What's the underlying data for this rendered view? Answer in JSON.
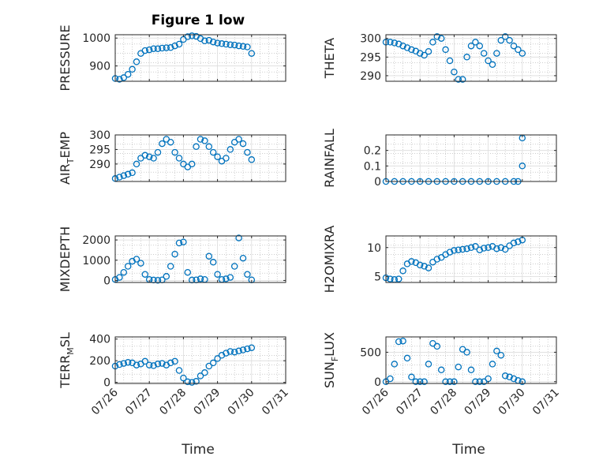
{
  "title": "Figure 1 low",
  "xlabel": "Time",
  "x_ticks": [
    "07/26",
    "07/27",
    "07/28",
    "07/29",
    "07/30",
    "07/31"
  ],
  "colors": {
    "marker": "#0072BD",
    "axis": "#262626",
    "grid": "#b0b0b0"
  },
  "chart_data": [
    {
      "type": "scatter",
      "panel": "top-left",
      "ylabel": "PRESSURE",
      "yticks": [
        "900",
        "1000"
      ],
      "ylim": [
        845,
        1012
      ],
      "x": [
        "07/26 00:00",
        "07/26 03:00",
        "07/26 06:00",
        "07/26 09:00",
        "07/26 12:00",
        "07/26 15:00",
        "07/26 18:00",
        "07/26 21:00",
        "07/27 00:00",
        "07/27 03:00",
        "07/27 06:00",
        "07/27 09:00",
        "07/27 12:00",
        "07/27 15:00",
        "07/27 18:00",
        "07/27 21:00",
        "07/28 00:00",
        "07/28 03:00",
        "07/28 06:00",
        "07/28 09:00",
        "07/28 12:00",
        "07/28 15:00",
        "07/28 18:00",
        "07/28 21:00",
        "07/29 00:00",
        "07/29 03:00",
        "07/29 06:00",
        "07/29 09:00",
        "07/29 12:00",
        "07/29 15:00",
        "07/29 18:00",
        "07/29 21:00",
        "07/30 00:00"
      ],
      "y": [
        855,
        852,
        858,
        870,
        888,
        915,
        945,
        955,
        958,
        962,
        962,
        964,
        965,
        966,
        972,
        978,
        995,
        1005,
        1008,
        1006,
        998,
        990,
        992,
        986,
        982,
        980,
        978,
        976,
        975,
        972,
        970,
        968,
        945
      ]
    },
    {
      "type": "scatter",
      "panel": "top-right",
      "ylabel": "THETA",
      "yticks": [
        "290",
        "295",
        "300"
      ],
      "ylim": [
        288.5,
        301
      ],
      "x": [
        "07/26 00:00",
        "07/26 03:00",
        "07/26 06:00",
        "07/26 09:00",
        "07/26 12:00",
        "07/26 15:00",
        "07/26 18:00",
        "07/26 21:00",
        "07/27 00:00",
        "07/27 03:00",
        "07/27 06:00",
        "07/27 09:00",
        "07/27 12:00",
        "07/27 15:00",
        "07/27 18:00",
        "07/27 21:00",
        "07/28 00:00",
        "07/28 03:00",
        "07/28 06:00",
        "07/28 09:00",
        "07/28 12:00",
        "07/28 15:00",
        "07/28 18:00",
        "07/28 21:00",
        "07/29 00:00",
        "07/29 03:00",
        "07/29 06:00",
        "07/29 09:00",
        "07/29 12:00",
        "07/29 15:00",
        "07/29 18:00",
        "07/29 21:00",
        "07/30 00:00"
      ],
      "y": [
        299,
        299,
        298.8,
        298.5,
        298,
        297.5,
        297,
        296.6,
        296,
        295.5,
        296.5,
        299,
        300.5,
        300,
        297,
        294,
        291,
        289,
        289,
        295,
        298,
        299,
        298,
        296,
        294,
        293,
        296,
        299.5,
        300.5,
        299.5,
        298,
        297,
        296
      ]
    },
    {
      "type": "scatter",
      "panel": "second-left",
      "ylabel": "AIR_TEMP",
      "yticks": [
        "290",
        "295",
        "300"
      ],
      "ylim": [
        284,
        300
      ],
      "x": [
        "07/26 00:00",
        "07/26 03:00",
        "07/26 06:00",
        "07/26 09:00",
        "07/26 12:00",
        "07/26 15:00",
        "07/26 18:00",
        "07/26 21:00",
        "07/27 00:00",
        "07/27 03:00",
        "07/27 06:00",
        "07/27 09:00",
        "07/27 12:00",
        "07/27 15:00",
        "07/27 18:00",
        "07/27 21:00",
        "07/28 00:00",
        "07/28 03:00",
        "07/28 06:00",
        "07/28 09:00",
        "07/28 12:00",
        "07/28 15:00",
        "07/28 18:00",
        "07/28 21:00",
        "07/29 00:00",
        "07/29 03:00",
        "07/29 06:00",
        "07/29 09:00",
        "07/29 12:00",
        "07/29 15:00",
        "07/29 18:00",
        "07/29 21:00",
        "07/30 00:00"
      ],
      "y": [
        285,
        285.5,
        286,
        286.5,
        287,
        290,
        292,
        293,
        292.5,
        292,
        294,
        297,
        298.5,
        297.5,
        294,
        292,
        290,
        289,
        290,
        296,
        298.5,
        298,
        296,
        294,
        292.5,
        291,
        292,
        295,
        297.5,
        298.5,
        297,
        294,
        291.5
      ]
    },
    {
      "type": "scatter",
      "panel": "second-right",
      "ylabel": "RAINFALL",
      "yticks": [
        "0",
        "0.1",
        "0.2"
      ],
      "ylim": [
        0,
        0.3
      ],
      "x": [
        "07/26 00:00",
        "07/26 06:00",
        "07/26 12:00",
        "07/26 18:00",
        "07/27 00:00",
        "07/27 06:00",
        "07/27 12:00",
        "07/27 18:00",
        "07/28 00:00",
        "07/28 06:00",
        "07/28 12:00",
        "07/28 18:00",
        "07/29 00:00",
        "07/29 06:00",
        "07/29 12:00",
        "07/29 18:00",
        "07/29 21:00",
        "07/30 00:00",
        "07/30 00:00"
      ],
      "y": [
        0,
        0,
        0,
        0,
        0,
        0,
        0,
        0,
        0,
        0,
        0,
        0,
        0,
        0,
        0,
        0,
        0,
        0.1,
        0.28
      ]
    },
    {
      "type": "scatter",
      "panel": "third-left",
      "ylabel": "MIXDEPTH",
      "yticks": [
        "0",
        "1000",
        "2000"
      ],
      "ylim": [
        -100,
        2200
      ],
      "x": [
        "07/26 00:00",
        "07/26 03:00",
        "07/26 06:00",
        "07/26 09:00",
        "07/26 12:00",
        "07/26 15:00",
        "07/26 18:00",
        "07/26 21:00",
        "07/27 00:00",
        "07/27 03:00",
        "07/27 06:00",
        "07/27 09:00",
        "07/27 12:00",
        "07/27 15:00",
        "07/27 18:00",
        "07/27 21:00",
        "07/28 00:00",
        "07/28 03:00",
        "07/28 06:00",
        "07/28 09:00",
        "07/28 12:00",
        "07/28 15:00",
        "07/28 18:00",
        "07/28 21:00",
        "07/29 00:00",
        "07/29 03:00",
        "07/29 06:00",
        "07/29 09:00",
        "07/29 12:00",
        "07/29 15:00",
        "07/29 18:00",
        "07/29 21:00",
        "07/30 00:00"
      ],
      "y": [
        50,
        150,
        400,
        700,
        950,
        1050,
        850,
        300,
        50,
        20,
        10,
        30,
        200,
        700,
        1300,
        1850,
        1900,
        400,
        20,
        30,
        80,
        50,
        1200,
        900,
        300,
        50,
        80,
        150,
        700,
        2100,
        1100,
        300,
        30
      ]
    },
    {
      "type": "scatter",
      "panel": "third-right",
      "ylabel": "H2OMIXRA",
      "yticks": [
        "5",
        "10"
      ],
      "ylim": [
        4,
        12
      ],
      "x": [
        "07/26 00:00",
        "07/26 03:00",
        "07/26 06:00",
        "07/26 09:00",
        "07/26 12:00",
        "07/26 15:00",
        "07/26 18:00",
        "07/26 21:00",
        "07/27 00:00",
        "07/27 03:00",
        "07/27 06:00",
        "07/27 09:00",
        "07/27 12:00",
        "07/27 15:00",
        "07/27 18:00",
        "07/27 21:00",
        "07/28 00:00",
        "07/28 03:00",
        "07/28 06:00",
        "07/28 09:00",
        "07/28 12:00",
        "07/28 15:00",
        "07/28 18:00",
        "07/28 21:00",
        "07/29 00:00",
        "07/29 03:00",
        "07/29 06:00",
        "07/29 09:00",
        "07/29 12:00",
        "07/29 15:00",
        "07/29 18:00",
        "07/29 21:00",
        "07/30 00:00"
      ],
      "y": [
        4.8,
        4.6,
        4.5,
        4.6,
        6,
        7.2,
        7.6,
        7.4,
        7,
        6.8,
        6.5,
        7.5,
        8,
        8.3,
        8.8,
        9.2,
        9.5,
        9.6,
        9.7,
        9.8,
        10,
        10.2,
        9.6,
        9.9,
        10,
        10.2,
        9.8,
        10,
        9.7,
        10.3,
        10.8,
        11,
        11.3
      ]
    },
    {
      "type": "scatter",
      "panel": "bottom-left",
      "ylabel": "TERR_MSL",
      "yticks": [
        "0",
        "200",
        "400"
      ],
      "ylim": [
        -10,
        420
      ],
      "x": [
        "07/26 00:00",
        "07/26 03:00",
        "07/26 06:00",
        "07/26 09:00",
        "07/26 12:00",
        "07/26 15:00",
        "07/26 18:00",
        "07/26 21:00",
        "07/27 00:00",
        "07/27 03:00",
        "07/27 06:00",
        "07/27 09:00",
        "07/27 12:00",
        "07/27 15:00",
        "07/27 18:00",
        "07/27 21:00",
        "07/28 00:00",
        "07/28 03:00",
        "07/28 06:00",
        "07/28 09:00",
        "07/28 12:00",
        "07/28 15:00",
        "07/28 18:00",
        "07/28 21:00",
        "07/29 00:00",
        "07/29 03:00",
        "07/29 06:00",
        "07/29 09:00",
        "07/29 12:00",
        "07/29 15:00",
        "07/29 18:00",
        "07/29 21:00",
        "07/30 00:00"
      ],
      "y": [
        150,
        165,
        175,
        185,
        180,
        160,
        170,
        195,
        160,
        155,
        170,
        175,
        160,
        180,
        195,
        110,
        40,
        5,
        0,
        10,
        60,
        90,
        150,
        180,
        220,
        250,
        270,
        285,
        280,
        290,
        300,
        310,
        320
      ]
    },
    {
      "type": "scatter",
      "panel": "bottom-right",
      "ylabel": "SUN_FLUX",
      "yticks": [
        "0",
        "500"
      ],
      "ylim": [
        -30,
        760
      ],
      "x": [
        "07/26 00:00",
        "07/26 03:00",
        "07/26 06:00",
        "07/26 09:00",
        "07/26 12:00",
        "07/26 15:00",
        "07/26 18:00",
        "07/26 21:00",
        "07/27 00:00",
        "07/27 03:00",
        "07/27 06:00",
        "07/27 09:00",
        "07/27 12:00",
        "07/27 15:00",
        "07/27 18:00",
        "07/27 21:00",
        "07/28 00:00",
        "07/28 03:00",
        "07/28 06:00",
        "07/28 09:00",
        "07/28 12:00",
        "07/28 15:00",
        "07/28 18:00",
        "07/28 21:00",
        "07/29 00:00",
        "07/29 03:00",
        "07/29 06:00",
        "07/29 09:00",
        "07/29 12:00",
        "07/29 15:00",
        "07/29 18:00",
        "07/29 21:00",
        "07/30 00:00"
      ],
      "y": [
        0,
        50,
        300,
        680,
        690,
        400,
        80,
        0,
        0,
        0,
        300,
        650,
        600,
        200,
        0,
        0,
        0,
        250,
        550,
        500,
        200,
        0,
        0,
        0,
        50,
        300,
        520,
        450,
        100,
        80,
        50,
        20,
        0
      ]
    }
  ]
}
